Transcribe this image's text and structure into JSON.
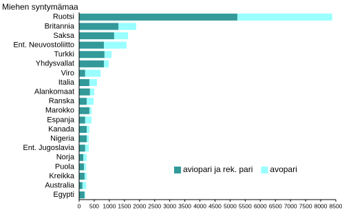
{
  "chart_data": {
    "type": "hbar-stacked",
    "title": "Miehen syntymämaa",
    "categories": [
      "Ruotsi",
      "Britannia",
      "Saksa",
      "Ent. Neuvostoliitto",
      "Turkki",
      "Yhdysvallat",
      "Viro",
      "Italia",
      "Alankomaat",
      "Ranska",
      "Marokko",
      "Espanja",
      "Kanada",
      "Nigeria",
      "Ent. Jugoslavia",
      "Norja",
      "Puola",
      "Kreikka",
      "Australia",
      "Egypti"
    ],
    "series": [
      {
        "name": "aviopari ja rek. pari",
        "color": "#339999",
        "values": [
          5240,
          1300,
          1160,
          820,
          840,
          820,
          200,
          340,
          360,
          250,
          340,
          200,
          250,
          250,
          200,
          140,
          160,
          180,
          110,
          180
        ]
      },
      {
        "name": "avopari",
        "color": "#99ffff",
        "values": [
          3140,
          590,
          460,
          750,
          230,
          160,
          510,
          250,
          140,
          230,
          70,
          210,
          90,
          70,
          120,
          110,
          70,
          70,
          120,
          20
        ]
      }
    ],
    "xlim": [
      0,
      8500
    ],
    "xticks": [
      0,
      500,
      1000,
      1500,
      2000,
      2500,
      3000,
      3500,
      4000,
      4500,
      5000,
      5500,
      6000,
      6500,
      7000,
      7500,
      8000,
      8500
    ],
    "legend": "bottom-right"
  }
}
